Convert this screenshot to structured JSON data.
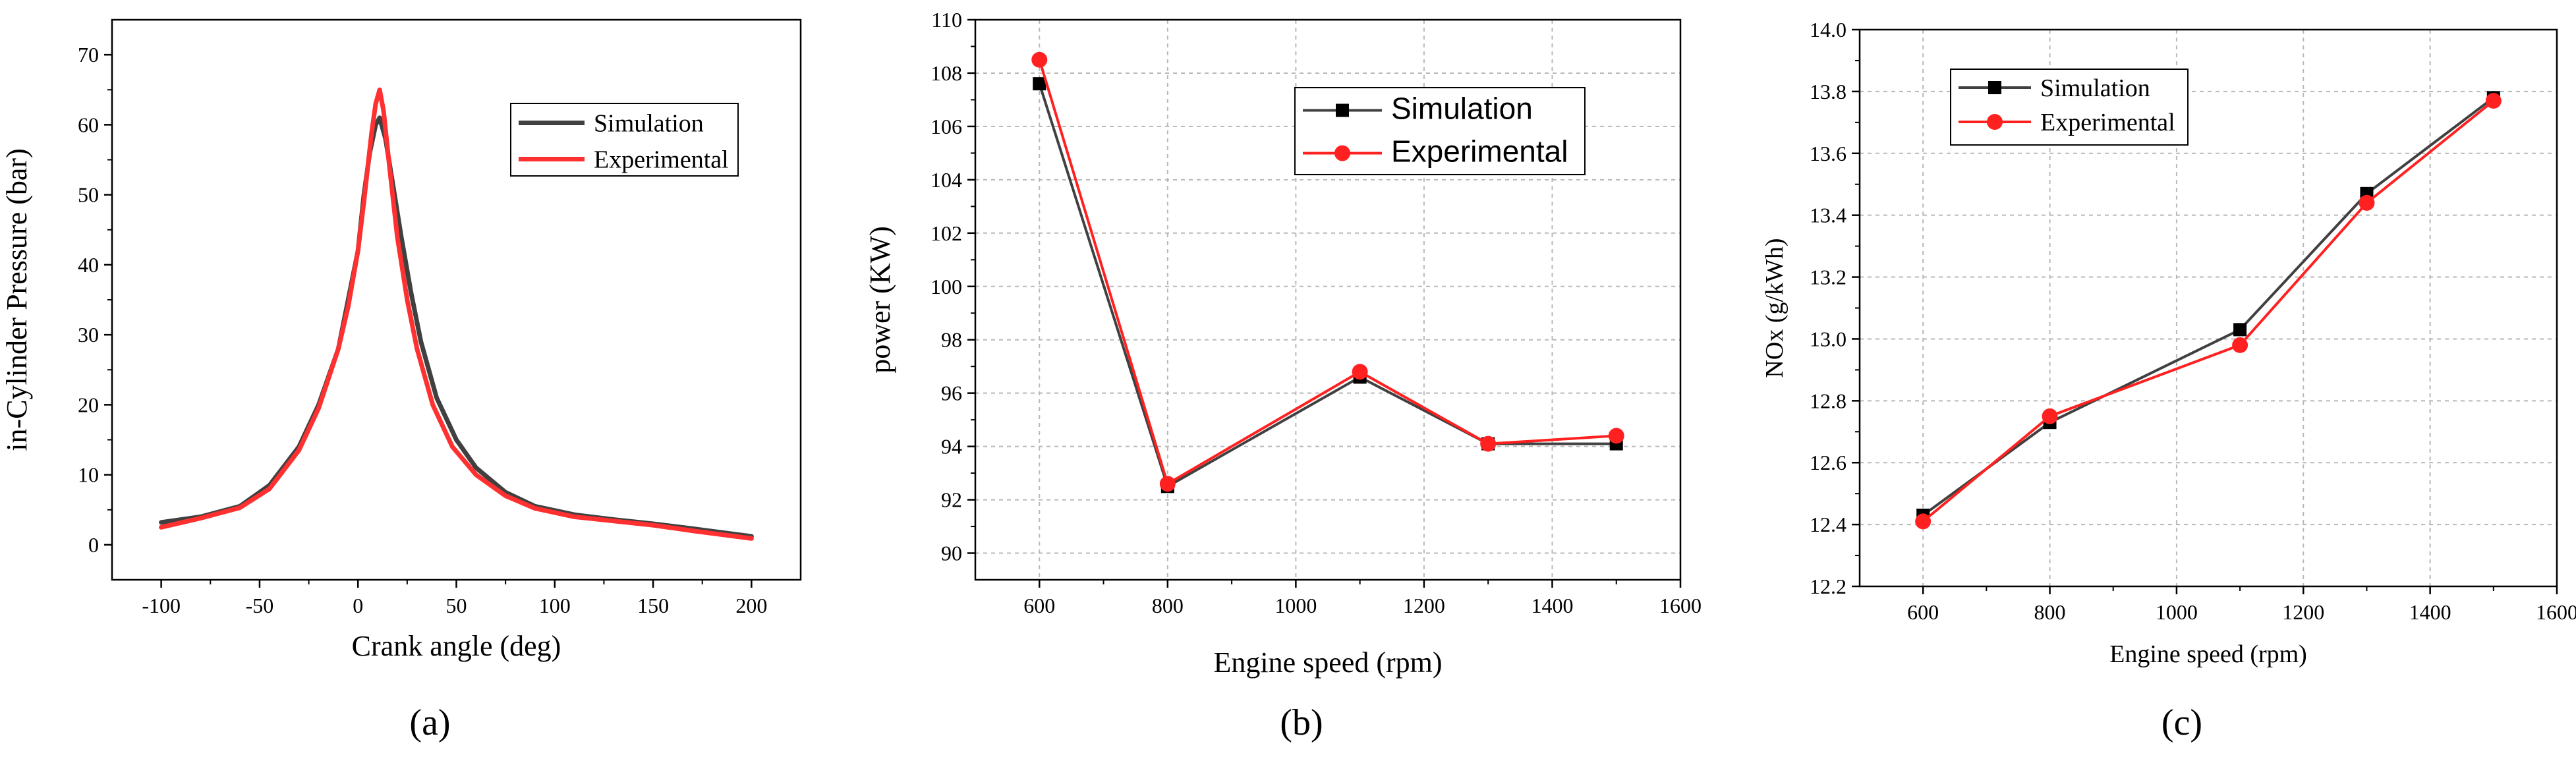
{
  "chart_data": [
    {
      "type": "line",
      "panel_label": "(a)",
      "xlabel": "Crank angle (deg)",
      "ylabel": "in-Cylinder Pressure (bar)",
      "xlim": [
        -125,
        225
      ],
      "ylim": [
        -5,
        75
      ],
      "xticks": [
        -100,
        -50,
        0,
        50,
        100,
        150,
        200
      ],
      "yticks": [
        0,
        10,
        20,
        30,
        40,
        50,
        60,
        70
      ],
      "x_tick_labels": [
        "-100",
        "-50",
        "0",
        "50",
        "100",
        "150",
        "200"
      ],
      "y_tick_labels": [
        "0",
        "10",
        "20",
        "30",
        "40",
        "50",
        "60",
        "70"
      ],
      "grid": false,
      "legend_position": "upper-right",
      "series": [
        {
          "name": "Simulation",
          "color": "#404040",
          "marker": "none",
          "points": [
            [
              -100,
              3.2
            ],
            [
              -80,
              4.0
            ],
            [
              -60,
              5.5
            ],
            [
              -45,
              8.5
            ],
            [
              -30,
              14
            ],
            [
              -20,
              20
            ],
            [
              -10,
              28
            ],
            [
              -5,
              35
            ],
            [
              0,
              42
            ],
            [
              3,
              50
            ],
            [
              6,
              56
            ],
            [
              9,
              60
            ],
            [
              11,
              61
            ],
            [
              14,
              58
            ],
            [
              18,
              51
            ],
            [
              22,
              44
            ],
            [
              27,
              36
            ],
            [
              32,
              29
            ],
            [
              40,
              21
            ],
            [
              50,
              15
            ],
            [
              60,
              11
            ],
            [
              75,
              7.5
            ],
            [
              90,
              5.5
            ],
            [
              110,
              4.3
            ],
            [
              130,
              3.6
            ],
            [
              150,
              3.0
            ],
            [
              170,
              2.3
            ],
            [
              200,
              1.2
            ]
          ]
        },
        {
          "name": "Experimental",
          "color": "#ff3030",
          "marker": "none",
          "points": [
            [
              -100,
              2.5
            ],
            [
              -80,
              3.8
            ],
            [
              -60,
              5.3
            ],
            [
              -45,
              8.0
            ],
            [
              -30,
              13.5
            ],
            [
              -20,
              19.5
            ],
            [
              -10,
              28
            ],
            [
              -5,
              34
            ],
            [
              0,
              42
            ],
            [
              3,
              49
            ],
            [
              5,
              54
            ],
            [
              7,
              59
            ],
            [
              9,
              63
            ],
            [
              11,
              65
            ],
            [
              13,
              62
            ],
            [
              16,
              54
            ],
            [
              20,
              44
            ],
            [
              25,
              35
            ],
            [
              30,
              28
            ],
            [
              38,
              20
            ],
            [
              48,
              14
            ],
            [
              60,
              10
            ],
            [
              75,
              7
            ],
            [
              90,
              5.2
            ],
            [
              110,
              4.0
            ],
            [
              130,
              3.4
            ],
            [
              150,
              2.8
            ],
            [
              170,
              2.0
            ],
            [
              200,
              0.9
            ]
          ]
        }
      ]
    },
    {
      "type": "line",
      "panel_label": "(b)",
      "xlabel": "Engine speed (rpm)",
      "ylabel": "power (KW)",
      "xlim": [
        500,
        1600
      ],
      "ylim": [
        89,
        110
      ],
      "xticks": [
        600,
        800,
        1000,
        1200,
        1400,
        1600
      ],
      "yticks": [
        90,
        92,
        94,
        96,
        98,
        100,
        102,
        104,
        106,
        108,
        110
      ],
      "x_tick_labels": [
        "600",
        "800",
        "1000",
        "1200",
        "1400",
        "1600"
      ],
      "y_tick_labels": [
        "90",
        "92",
        "94",
        "96",
        "98",
        "100",
        "102",
        "104",
        "106",
        "108",
        "110"
      ],
      "grid": true,
      "legend_position": "upper-right",
      "series": [
        {
          "name": "Simulation",
          "color": "#404040",
          "marker": "square",
          "points": [
            [
              600,
              107.6
            ],
            [
              800,
              92.5
            ],
            [
              1100,
              96.6
            ],
            [
              1300,
              94.1
            ],
            [
              1500,
              94.1
            ]
          ]
        },
        {
          "name": "Experimental",
          "color": "#ff2020",
          "marker": "circle",
          "points": [
            [
              600,
              108.5
            ],
            [
              800,
              92.6
            ],
            [
              1100,
              96.8
            ],
            [
              1300,
              94.1
            ],
            [
              1500,
              94.4
            ]
          ]
        }
      ]
    },
    {
      "type": "line",
      "panel_label": "(c)",
      "xlabel": "Engine speed (rpm)",
      "ylabel": "NOx (g/kWh)",
      "xlim": [
        500,
        1600
      ],
      "ylim": [
        12.2,
        14.0
      ],
      "xticks": [
        600,
        800,
        1000,
        1200,
        1400,
        1600
      ],
      "yticks": [
        12.2,
        12.4,
        12.6,
        12.8,
        13.0,
        13.2,
        13.4,
        13.6,
        13.8,
        14.0
      ],
      "x_tick_labels": [
        "600",
        "800",
        "1000",
        "1200",
        "1400",
        "1600"
      ],
      "y_tick_labels": [
        "12.2",
        "12.4",
        "12.6",
        "12.8",
        "13.0",
        "13.2",
        "13.4",
        "13.6",
        "13.8",
        "14.0"
      ],
      "grid": true,
      "legend_position": "upper-left",
      "series": [
        {
          "name": "Simulation",
          "color": "#404040",
          "marker": "square",
          "points": [
            [
              600,
              12.43
            ],
            [
              800,
              12.73
            ],
            [
              1100,
              13.03
            ],
            [
              1300,
              13.47
            ],
            [
              1500,
              13.78
            ]
          ]
        },
        {
          "name": "Experimental",
          "color": "#ff2020",
          "marker": "circle",
          "points": [
            [
              600,
              12.41
            ],
            [
              800,
              12.75
            ],
            [
              1100,
              12.98
            ],
            [
              1300,
              13.44
            ],
            [
              1500,
              13.77
            ]
          ]
        }
      ]
    }
  ]
}
